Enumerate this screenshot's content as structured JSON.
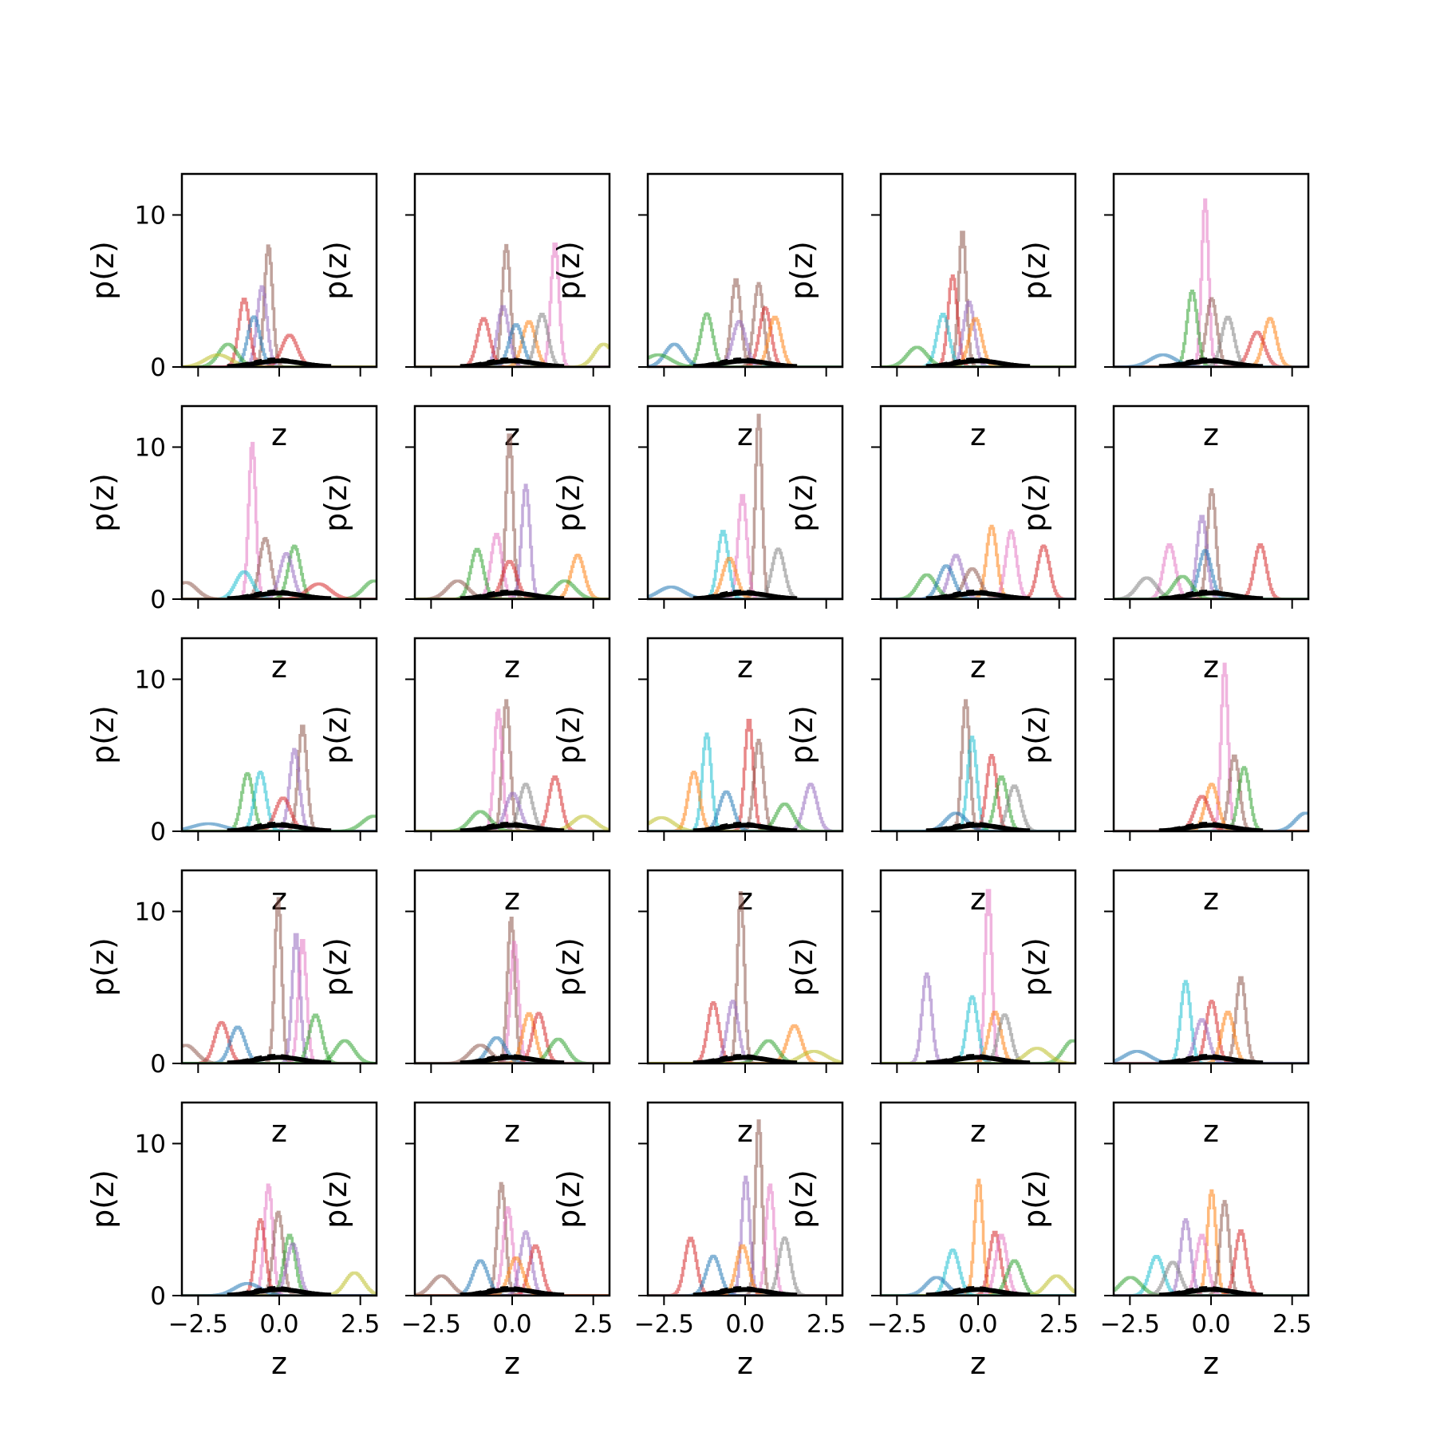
{
  "chart_data": {
    "type": "line",
    "layout": "5x5 grid of subplots",
    "xlabel": "z",
    "ylabel": "p(z)",
    "xlim": [
      -3.0,
      3.0
    ],
    "ylim": [
      0,
      12.7
    ],
    "xticks": [
      -2.5,
      0.0,
      2.5
    ],
    "xtick_labels": [
      "−2.5",
      "0.0",
      "2.5"
    ],
    "yticks": [
      0,
      10
    ],
    "ytick_labels": [
      "0",
      "10"
    ],
    "grid": false,
    "legend": "none",
    "series_colors": [
      "#1f77b4",
      "#ff7f0e",
      "#2ca02c",
      "#d62728",
      "#9467bd",
      "#8c564b",
      "#e377c2",
      "#7f7f7f",
      "#bcbd22",
      "#17becf"
    ],
    "reference_curve": {
      "color": "#000000",
      "style": "solid + dashed",
      "peak_x": 0.0,
      "peak_y": 0.4
    },
    "subplots": [
      {
        "row": 0,
        "col": 0,
        "peaks": [
          {
            "s": 5,
            "x": -0.35,
            "y": 8.0
          },
          {
            "s": 4,
            "x": -0.55,
            "y": 5.3
          },
          {
            "s": 3,
            "x": -1.1,
            "y": 4.5
          },
          {
            "s": 0,
            "x": -0.8,
            "y": 3.3
          },
          {
            "s": 3,
            "x": 0.3,
            "y": 2.1
          },
          {
            "s": 2,
            "x": -1.6,
            "y": 1.5
          },
          {
            "s": 8,
            "x": -1.9,
            "y": 0.8
          }
        ]
      },
      {
        "row": 0,
        "col": 1,
        "peaks": [
          {
            "s": 5,
            "x": -0.2,
            "y": 8.0
          },
          {
            "s": 6,
            "x": 1.3,
            "y": 8.2
          },
          {
            "s": 4,
            "x": -0.3,
            "y": 4.0
          },
          {
            "s": 1,
            "x": 0.5,
            "y": 3.0
          },
          {
            "s": 3,
            "x": -0.9,
            "y": 3.2
          },
          {
            "s": 0,
            "x": 0.1,
            "y": 2.8
          },
          {
            "s": 8,
            "x": 2.8,
            "y": 1.5
          },
          {
            "s": 7,
            "x": 0.9,
            "y": 3.5
          }
        ]
      },
      {
        "row": 0,
        "col": 2,
        "peaks": [
          {
            "s": 5,
            "x": -0.3,
            "y": 5.8
          },
          {
            "s": 5,
            "x": 0.4,
            "y": 5.5
          },
          {
            "s": 2,
            "x": -1.2,
            "y": 3.5
          },
          {
            "s": 3,
            "x": 0.6,
            "y": 3.9
          },
          {
            "s": 1,
            "x": 0.9,
            "y": 3.3
          },
          {
            "s": 4,
            "x": -0.2,
            "y": 3.0
          },
          {
            "s": 0,
            "x": -2.2,
            "y": 1.5
          },
          {
            "s": 2,
            "x": -2.7,
            "y": 0.8
          }
        ]
      },
      {
        "row": 0,
        "col": 3,
        "peaks": [
          {
            "s": 5,
            "x": -0.5,
            "y": 9.0
          },
          {
            "s": 3,
            "x": -0.8,
            "y": 6.0
          },
          {
            "s": 4,
            "x": -0.3,
            "y": 4.3
          },
          {
            "s": 9,
            "x": -1.1,
            "y": 3.5
          },
          {
            "s": 1,
            "x": -0.1,
            "y": 3.2
          },
          {
            "s": 2,
            "x": -1.9,
            "y": 1.3
          }
        ]
      },
      {
        "row": 0,
        "col": 4,
        "peaks": [
          {
            "s": 6,
            "x": -0.2,
            "y": 11.0
          },
          {
            "s": 5,
            "x": 0.0,
            "y": 4.5
          },
          {
            "s": 2,
            "x": -0.6,
            "y": 5.0
          },
          {
            "s": 1,
            "x": 1.8,
            "y": 3.2
          },
          {
            "s": 3,
            "x": 1.4,
            "y": 2.3
          },
          {
            "s": 7,
            "x": 0.5,
            "y": 3.3
          },
          {
            "s": 0,
            "x": -1.5,
            "y": 0.8
          }
        ]
      },
      {
        "row": 1,
        "col": 0,
        "peaks": [
          {
            "s": 6,
            "x": -0.85,
            "y": 10.3
          },
          {
            "s": 5,
            "x": -0.45,
            "y": 4.0
          },
          {
            "s": 2,
            "x": 0.45,
            "y": 3.5
          },
          {
            "s": 4,
            "x": 0.2,
            "y": 3.0
          },
          {
            "s": 9,
            "x": -1.1,
            "y": 1.8
          },
          {
            "s": 5,
            "x": -2.9,
            "y": 1.1
          },
          {
            "s": 2,
            "x": 2.9,
            "y": 1.2
          },
          {
            "s": 3,
            "x": 1.2,
            "y": 1.0
          }
        ]
      },
      {
        "row": 1,
        "col": 1,
        "peaks": [
          {
            "s": 5,
            "x": -0.1,
            "y": 11.0
          },
          {
            "s": 4,
            "x": 0.4,
            "y": 7.5
          },
          {
            "s": 6,
            "x": -0.5,
            "y": 4.3
          },
          {
            "s": 2,
            "x": -1.1,
            "y": 3.3
          },
          {
            "s": 1,
            "x": 2.0,
            "y": 2.9
          },
          {
            "s": 3,
            "x": -0.1,
            "y": 2.5
          },
          {
            "s": 5,
            "x": -1.7,
            "y": 1.2
          },
          {
            "s": 2,
            "x": 1.6,
            "y": 1.2
          }
        ]
      },
      {
        "row": 1,
        "col": 2,
        "peaks": [
          {
            "s": 5,
            "x": 0.4,
            "y": 12.1
          },
          {
            "s": 6,
            "x": -0.1,
            "y": 6.9
          },
          {
            "s": 9,
            "x": -0.7,
            "y": 4.5
          },
          {
            "s": 7,
            "x": 1.0,
            "y": 3.3
          },
          {
            "s": 1,
            "x": -0.5,
            "y": 2.7
          },
          {
            "s": 0,
            "x": -2.3,
            "y": 0.8
          }
        ]
      },
      {
        "row": 1,
        "col": 3,
        "peaks": [
          {
            "s": 1,
            "x": 0.4,
            "y": 4.8
          },
          {
            "s": 6,
            "x": 1.0,
            "y": 4.5
          },
          {
            "s": 3,
            "x": 2.0,
            "y": 3.5
          },
          {
            "s": 4,
            "x": -0.7,
            "y": 2.9
          },
          {
            "s": 2,
            "x": -1.6,
            "y": 1.6
          },
          {
            "s": 5,
            "x": -0.2,
            "y": 2.0
          },
          {
            "s": 0,
            "x": -1.0,
            "y": 2.2
          }
        ]
      },
      {
        "row": 1,
        "col": 4,
        "peaks": [
          {
            "s": 5,
            "x": 0.0,
            "y": 7.2
          },
          {
            "s": 4,
            "x": -0.3,
            "y": 5.5
          },
          {
            "s": 6,
            "x": -1.3,
            "y": 3.6
          },
          {
            "s": 3,
            "x": 1.5,
            "y": 3.6
          },
          {
            "s": 0,
            "x": -0.2,
            "y": 3.2
          },
          {
            "s": 7,
            "x": -2.0,
            "y": 1.4
          },
          {
            "s": 2,
            "x": -0.9,
            "y": 1.5
          }
        ]
      },
      {
        "row": 2,
        "col": 0,
        "peaks": [
          {
            "s": 5,
            "x": 0.7,
            "y": 7.0
          },
          {
            "s": 4,
            "x": 0.45,
            "y": 5.4
          },
          {
            "s": 2,
            "x": -1.0,
            "y": 3.8
          },
          {
            "s": 9,
            "x": -0.6,
            "y": 3.9
          },
          {
            "s": 3,
            "x": 0.1,
            "y": 2.2
          },
          {
            "s": 0,
            "x": -2.2,
            "y": 0.5
          },
          {
            "s": 2,
            "x": 2.9,
            "y": 1.0
          }
        ]
      },
      {
        "row": 2,
        "col": 1,
        "peaks": [
          {
            "s": 5,
            "x": -0.2,
            "y": 8.6
          },
          {
            "s": 6,
            "x": -0.45,
            "y": 8.0
          },
          {
            "s": 3,
            "x": 1.3,
            "y": 3.6
          },
          {
            "s": 7,
            "x": 0.4,
            "y": 3.1
          },
          {
            "s": 4,
            "x": 0.0,
            "y": 2.5
          },
          {
            "s": 2,
            "x": -1.0,
            "y": 1.3
          },
          {
            "s": 8,
            "x": 2.2,
            "y": 1.0
          }
        ]
      },
      {
        "row": 2,
        "col": 2,
        "peaks": [
          {
            "s": 9,
            "x": -1.2,
            "y": 6.4
          },
          {
            "s": 3,
            "x": 0.1,
            "y": 7.4
          },
          {
            "s": 5,
            "x": 0.4,
            "y": 6.0
          },
          {
            "s": 1,
            "x": -1.6,
            "y": 3.9
          },
          {
            "s": 4,
            "x": 2.0,
            "y": 3.1
          },
          {
            "s": 2,
            "x": 1.2,
            "y": 1.8
          },
          {
            "s": 8,
            "x": -2.6,
            "y": 0.9
          },
          {
            "s": 0,
            "x": -0.6,
            "y": 2.6
          }
        ]
      },
      {
        "row": 2,
        "col": 3,
        "peaks": [
          {
            "s": 5,
            "x": -0.4,
            "y": 8.6
          },
          {
            "s": 9,
            "x": -0.2,
            "y": 6.2
          },
          {
            "s": 3,
            "x": 0.4,
            "y": 5.0
          },
          {
            "s": 2,
            "x": 0.7,
            "y": 3.6
          },
          {
            "s": 7,
            "x": 1.1,
            "y": 3.0
          },
          {
            "s": 0,
            "x": -0.7,
            "y": 1.2
          }
        ]
      },
      {
        "row": 2,
        "col": 4,
        "peaks": [
          {
            "s": 6,
            "x": 0.4,
            "y": 11.0
          },
          {
            "s": 5,
            "x": 0.7,
            "y": 5.0
          },
          {
            "s": 2,
            "x": 1.0,
            "y": 4.2
          },
          {
            "s": 1,
            "x": 0.0,
            "y": 3.1
          },
          {
            "s": 3,
            "x": -0.3,
            "y": 2.3
          },
          {
            "s": 0,
            "x": 2.9,
            "y": 1.2
          }
        ]
      },
      {
        "row": 3,
        "col": 0,
        "peaks": [
          {
            "s": 5,
            "x": -0.05,
            "y": 10.9
          },
          {
            "s": 4,
            "x": 0.5,
            "y": 8.6
          },
          {
            "s": 6,
            "x": 0.7,
            "y": 8.2
          },
          {
            "s": 3,
            "x": -1.8,
            "y": 2.7
          },
          {
            "s": 0,
            "x": -1.3,
            "y": 2.4
          },
          {
            "s": 2,
            "x": 1.1,
            "y": 3.2
          },
          {
            "s": 5,
            "x": -2.9,
            "y": 1.2
          },
          {
            "s": 2,
            "x": 2.0,
            "y": 1.5
          }
        ]
      },
      {
        "row": 3,
        "col": 1,
        "peaks": [
          {
            "s": 5,
            "x": -0.05,
            "y": 9.6
          },
          {
            "s": 6,
            "x": 0.05,
            "y": 8.0
          },
          {
            "s": 1,
            "x": 0.5,
            "y": 3.3
          },
          {
            "s": 3,
            "x": 0.8,
            "y": 3.3
          },
          {
            "s": 2,
            "x": 1.4,
            "y": 1.6
          },
          {
            "s": 0,
            "x": -0.5,
            "y": 1.7
          },
          {
            "s": 5,
            "x": -1.0,
            "y": 1.2
          }
        ]
      },
      {
        "row": 3,
        "col": 2,
        "peaks": [
          {
            "s": 5,
            "x": -0.15,
            "y": 11.3
          },
          {
            "s": 3,
            "x": -1.0,
            "y": 4.0
          },
          {
            "s": 4,
            "x": -0.4,
            "y": 4.1
          },
          {
            "s": 1,
            "x": 1.5,
            "y": 2.5
          },
          {
            "s": 2,
            "x": 0.7,
            "y": 1.5
          },
          {
            "s": 8,
            "x": 2.1,
            "y": 0.8
          }
        ]
      },
      {
        "row": 3,
        "col": 3,
        "peaks": [
          {
            "s": 6,
            "x": 0.3,
            "y": 11.6
          },
          {
            "s": 4,
            "x": -1.6,
            "y": 5.9
          },
          {
            "s": 9,
            "x": -0.2,
            "y": 4.4
          },
          {
            "s": 1,
            "x": 0.5,
            "y": 3.4
          },
          {
            "s": 7,
            "x": 0.8,
            "y": 3.2
          },
          {
            "s": 2,
            "x": 2.9,
            "y": 1.5
          },
          {
            "s": 8,
            "x": 1.8,
            "y": 1.0
          }
        ]
      },
      {
        "row": 3,
        "col": 4,
        "peaks": [
          {
            "s": 5,
            "x": 0.9,
            "y": 5.7
          },
          {
            "s": 9,
            "x": -0.8,
            "y": 5.4
          },
          {
            "s": 3,
            "x": 0.0,
            "y": 4.1
          },
          {
            "s": 1,
            "x": 0.5,
            "y": 3.4
          },
          {
            "s": 4,
            "x": -0.3,
            "y": 2.9
          },
          {
            "s": 0,
            "x": -2.3,
            "y": 0.8
          }
        ]
      },
      {
        "row": 4,
        "col": 0,
        "peaks": [
          {
            "s": 6,
            "x": -0.35,
            "y": 7.3
          },
          {
            "s": 5,
            "x": -0.05,
            "y": 5.5
          },
          {
            "s": 3,
            "x": -0.6,
            "y": 5.0
          },
          {
            "s": 2,
            "x": 0.3,
            "y": 4.0
          },
          {
            "s": 4,
            "x": 0.4,
            "y": 3.4
          },
          {
            "s": 8,
            "x": 2.3,
            "y": 1.5
          },
          {
            "s": 0,
            "x": -1.0,
            "y": 0.8
          }
        ]
      },
      {
        "row": 4,
        "col": 1,
        "peaks": [
          {
            "s": 5,
            "x": -0.35,
            "y": 7.4
          },
          {
            "s": 6,
            "x": -0.15,
            "y": 5.8
          },
          {
            "s": 4,
            "x": 0.4,
            "y": 4.2
          },
          {
            "s": 3,
            "x": 0.7,
            "y": 3.3
          },
          {
            "s": 0,
            "x": -1.0,
            "y": 2.3
          },
          {
            "s": 5,
            "x": -2.2,
            "y": 1.3
          },
          {
            "s": 1,
            "x": 0.1,
            "y": 2.5
          }
        ]
      },
      {
        "row": 4,
        "col": 2,
        "peaks": [
          {
            "s": 5,
            "x": 0.4,
            "y": 11.5
          },
          {
            "s": 4,
            "x": 0.0,
            "y": 7.8
          },
          {
            "s": 6,
            "x": 0.75,
            "y": 7.3
          },
          {
            "s": 3,
            "x": -1.7,
            "y": 3.8
          },
          {
            "s": 7,
            "x": 1.2,
            "y": 3.8
          },
          {
            "s": 1,
            "x": -0.1,
            "y": 3.3
          },
          {
            "s": 0,
            "x": -1.0,
            "y": 2.6
          }
        ]
      },
      {
        "row": 4,
        "col": 3,
        "peaks": [
          {
            "s": 1,
            "x": 0.0,
            "y": 7.6
          },
          {
            "s": 3,
            "x": 0.5,
            "y": 4.2
          },
          {
            "s": 6,
            "x": 0.7,
            "y": 4.0
          },
          {
            "s": 9,
            "x": -0.8,
            "y": 3.0
          },
          {
            "s": 2,
            "x": 1.1,
            "y": 2.3
          },
          {
            "s": 8,
            "x": 2.4,
            "y": 1.3
          },
          {
            "s": 0,
            "x": -1.3,
            "y": 1.2
          }
        ]
      },
      {
        "row": 4,
        "col": 4,
        "peaks": [
          {
            "s": 1,
            "x": 0.0,
            "y": 6.9
          },
          {
            "s": 5,
            "x": 0.4,
            "y": 6.2
          },
          {
            "s": 3,
            "x": 0.9,
            "y": 4.3
          },
          {
            "s": 4,
            "x": -0.8,
            "y": 5.0
          },
          {
            "s": 6,
            "x": -0.3,
            "y": 4.0
          },
          {
            "s": 9,
            "x": -1.7,
            "y": 2.6
          },
          {
            "s": 2,
            "x": -2.5,
            "y": 1.2
          },
          {
            "s": 7,
            "x": -1.2,
            "y": 2.2
          }
        ]
      }
    ]
  }
}
